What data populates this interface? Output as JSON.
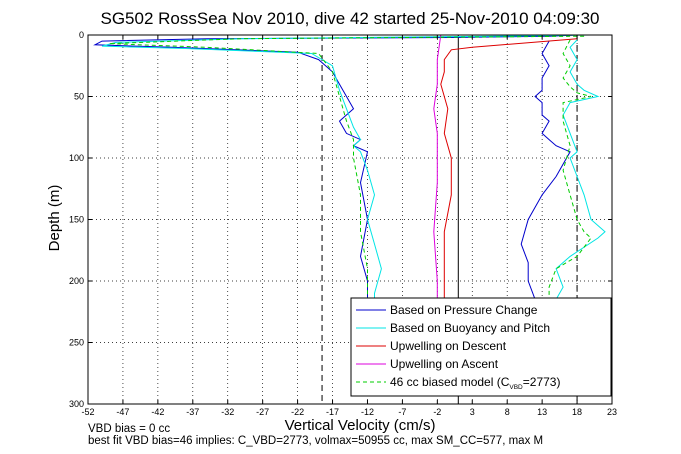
{
  "chart_data": {
    "type": "line",
    "title": "SG502 RossSea Nov 2010, dive 42 started 25-Nov-2010 04:09:30",
    "xlabel": "Vertical Velocity (cm/s)",
    "ylabel": "Depth (m)",
    "xlim": [
      -52,
      23
    ],
    "ylim": [
      0,
      300
    ],
    "y_reversed": true,
    "grid": true,
    "x_ticks": [
      -52,
      -47,
      -42,
      -37,
      -32,
      -27,
      -22,
      -17,
      -12,
      -7,
      -2,
      3,
      8,
      13,
      18,
      23
    ],
    "y_ticks": [
      0,
      50,
      100,
      150,
      200,
      250,
      300
    ],
    "legend_placement": "bottom-right",
    "vertical_reference_lines": [
      -18.5,
      18
    ],
    "series": [
      {
        "name": "Based on Pressure Change",
        "color": "#0000cc",
        "style": "solid",
        "segments": [
          {
            "x": [
              18,
              14,
              0,
              -35,
              -50,
              -51,
              -40,
              -22,
              -19,
              -17,
              -16,
              -15,
              -14,
              -16,
              -15,
              -13,
              -14,
              -12,
              -13,
              -12,
              -13,
              -12,
              -12,
              -12
            ],
            "y": [
              0,
              1,
              2,
              3,
              5,
              8,
              10,
              14,
              20,
              30,
              40,
              50,
              60,
              70,
              80,
              85,
              90,
              95,
              120,
              150,
              180,
              200,
              215,
              222
            ]
          },
          {
            "x": [
              14,
              13,
              14,
              13,
              13,
              12,
              13,
              13,
              14,
              13,
              14,
              15,
              17,
              15,
              13,
              11,
              10,
              11,
              11,
              12
            ],
            "y": [
              5,
              15,
              25,
              35,
              45,
              50,
              55,
              65,
              70,
              80,
              85,
              90,
              95,
              115,
              130,
              150,
              170,
              185,
              200,
              215
            ]
          }
        ]
      },
      {
        "name": "Based on Buoyancy and Pitch",
        "color": "#00e5e5",
        "style": "solid",
        "segments": [
          {
            "x": [
              20,
              5,
              -30,
              -48,
              -50,
              -38,
              -20,
              -17,
              -16,
              -15,
              -14,
              -13,
              -14,
              -13,
              -12,
              -11,
              -12,
              -11,
              -10,
              -11,
              -11
            ],
            "y": [
              0,
              1,
              3,
              6,
              9,
              11,
              15,
              25,
              45,
              60,
              75,
              85,
              90,
              95,
              110,
              130,
              150,
              170,
              190,
              210,
              222
            ]
          },
          {
            "x": [
              18,
              17,
              18,
              17,
              18,
              19,
              21,
              17,
              16,
              17,
              18,
              17,
              18,
              19,
              20,
              22,
              21,
              17,
              15,
              16,
              15
            ],
            "y": [
              4,
              10,
              20,
              30,
              40,
              45,
              50,
              55,
              65,
              80,
              95,
              100,
              115,
              130,
              150,
              160,
              165,
              180,
              190,
              205,
              215
            ]
          }
        ]
      },
      {
        "name": "Upwelling on Descent",
        "color": "#dd0000",
        "style": "solid",
        "segments": [
          {
            "x": [
              18,
              3,
              0,
              -1,
              -1,
              -1.5,
              -1,
              -0.5,
              -1,
              0,
              0,
              -1,
              -1,
              -1
            ],
            "y": [
              3,
              10,
              12,
              20,
              30,
              40,
              50,
              60,
              80,
              100,
              130,
              160,
              200,
              222
            ]
          }
        ]
      },
      {
        "name": "Upwelling on Ascent",
        "color": "#dd00dd",
        "style": "solid",
        "segments": [
          {
            "x": [
              -1.5,
              -2,
              -2,
              -2.5,
              -2,
              -2,
              -2.5,
              -2,
              -2
            ],
            "y": [
              0,
              20,
              40,
              60,
              80,
              120,
              160,
              200,
              222
            ]
          }
        ]
      },
      {
        "name": "46 cc biased model (C_VBD=2773)",
        "color": "#00cc00",
        "style": "dashed",
        "segments": [
          {
            "x": [
              19,
              -30,
              -49,
              -35,
              -19,
              -17,
              -16,
              -15,
              -14,
              -14,
              -13,
              -13,
              -12,
              -12
            ],
            "y": [
              1,
              3,
              7,
              10,
              15,
              30,
              50,
              70,
              85,
              100,
              130,
              160,
              190,
              222
            ]
          },
          {
            "x": [
              17,
              16,
              17,
              16,
              17,
              18,
              20,
              16,
              16,
              17,
              16,
              17,
              18,
              19,
              20,
              18,
              15,
              14,
              14
            ],
            "y": [
              4,
              15,
              25,
              35,
              42,
              47,
              50,
              55,
              70,
              90,
              110,
              130,
              150,
              160,
              165,
              180,
              190,
              205,
              215
            ]
          }
        ]
      }
    ]
  },
  "legend": {
    "entries": [
      "Based on Pressure Change",
      "Based on Buoyancy and Pitch",
      "Upwelling on Descent",
      "Upwelling on Ascent"
    ],
    "model_prefix": "46 cc biased model (C",
    "model_sub": "VBD",
    "model_suffix": "=2773)"
  },
  "footer": {
    "line1": "VBD bias = 0 cc",
    "line2": "best fit VBD bias=46 implies: C_VBD=2773, volmax=50955 cc, max SM_CC=577, max M"
  }
}
